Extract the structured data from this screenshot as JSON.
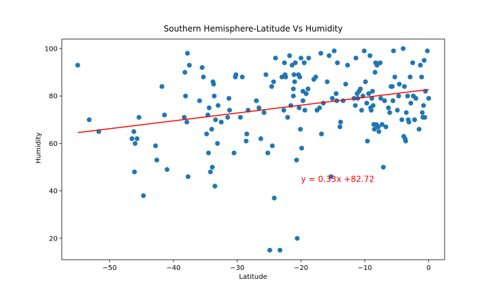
{
  "chart_data": {
    "type": "scatter",
    "title": "Southern Hemisphere-Latitude Vs Humidity",
    "xlabel": "Latitude",
    "ylabel": "Humidity",
    "xlim": [
      -57.5,
      2.5
    ],
    "ylim": [
      11,
      104
    ],
    "xticks": [
      -50,
      -40,
      -30,
      -20,
      -10,
      0
    ],
    "yticks": [
      20,
      40,
      60,
      80,
      100
    ],
    "grid": false,
    "point_color": "#1f77b4",
    "line_color": "#ff0000",
    "regression": {
      "slope": 0.33,
      "intercept": 82.72,
      "x_range": [
        -55,
        0
      ]
    },
    "annotation": {
      "text": "y = 0.33x +82.72",
      "x": -20,
      "y": 45,
      "color": "#ff0000"
    },
    "points": [
      [
        -55,
        93
      ],
      [
        -53.2,
        70
      ],
      [
        -51.7,
        65
      ],
      [
        -46.5,
        62
      ],
      [
        -46.2,
        65
      ],
      [
        -46.1,
        48
      ],
      [
        -46,
        60
      ],
      [
        -45.7,
        62
      ],
      [
        -45.4,
        71
      ],
      [
        -44.7,
        38
      ],
      [
        -42.8,
        59
      ],
      [
        -42.6,
        53
      ],
      [
        -41.8,
        84
      ],
      [
        -41.4,
        72
      ],
      [
        -41,
        49
      ],
      [
        -38.3,
        71
      ],
      [
        -38.2,
        90
      ],
      [
        -38.1,
        80
      ],
      [
        -37.9,
        69
      ],
      [
        -37.8,
        98
      ],
      [
        -37.7,
        46
      ],
      [
        -37.5,
        93
      ],
      [
        -35.9,
        78
      ],
      [
        -35.5,
        92
      ],
      [
        -35.3,
        88
      ],
      [
        -34.8,
        64
      ],
      [
        -34.6,
        72
      ],
      [
        -34.5,
        56
      ],
      [
        -34.4,
        75
      ],
      [
        -34.2,
        48
      ],
      [
        -34,
        66
      ],
      [
        -33.9,
        50
      ],
      [
        -33.8,
        86
      ],
      [
        -33.7,
        85
      ],
      [
        -33.6,
        80
      ],
      [
        -33.5,
        42
      ],
      [
        -33.4,
        70
      ],
      [
        -33.1,
        60
      ],
      [
        -33,
        76
      ],
      [
        -32.5,
        69
      ],
      [
        -31.5,
        71
      ],
      [
        -31.3,
        79
      ],
      [
        -31.2,
        74
      ],
      [
        -30.5,
        56
      ],
      [
        -30.3,
        88
      ],
      [
        -30.2,
        89
      ],
      [
        -29.5,
        71
      ],
      [
        -29.2,
        88
      ],
      [
        -28.6,
        61
      ],
      [
        -28.5,
        64
      ],
      [
        -28.3,
        74
      ],
      [
        -27,
        78
      ],
      [
        -26.6,
        75
      ],
      [
        -26.3,
        62
      ],
      [
        -25.8,
        73
      ],
      [
        -25.5,
        89
      ],
      [
        -25.2,
        56
      ],
      [
        -24.9,
        15
      ],
      [
        -24.6,
        84
      ],
      [
        -24.5,
        59
      ],
      [
        -24.3,
        86
      ],
      [
        -24.2,
        37
      ],
      [
        -24,
        96
      ],
      [
        -23.3,
        15
      ],
      [
        -23,
        88
      ],
      [
        -22.7,
        74
      ],
      [
        -22.6,
        94
      ],
      [
        -22.5,
        89
      ],
      [
        -22.4,
        88
      ],
      [
        -22.1,
        71
      ],
      [
        -21.8,
        97
      ],
      [
        -21.6,
        76
      ],
      [
        -21.4,
        93
      ],
      [
        -21.2,
        83
      ],
      [
        -21.2,
        80
      ],
      [
        -21,
        86
      ],
      [
        -21.1,
        89
      ],
      [
        -20.9,
        94
      ],
      [
        -20.7,
        53
      ],
      [
        -20.6,
        20
      ],
      [
        -20.4,
        89
      ],
      [
        -20.3,
        75
      ],
      [
        -20.2,
        88
      ],
      [
        -20.1,
        66
      ],
      [
        -20,
        96
      ],
      [
        -19.9,
        58
      ],
      [
        -19.7,
        82
      ],
      [
        -19.7,
        78
      ],
      [
        -19.5,
        94
      ],
      [
        -19.4,
        74
      ],
      [
        -19.2,
        81
      ],
      [
        -18.9,
        83
      ],
      [
        -18.8,
        96
      ],
      [
        -18,
        87
      ],
      [
        -17.7,
        88
      ],
      [
        -17.5,
        74
      ],
      [
        -17.1,
        75
      ],
      [
        -16.9,
        98
      ],
      [
        -16.8,
        64
      ],
      [
        -16.5,
        77
      ],
      [
        -15.9,
        86
      ],
      [
        -15.6,
        97
      ],
      [
        -15.3,
        46
      ],
      [
        -15.1,
        79
      ],
      [
        -14.8,
        99
      ],
      [
        -14.5,
        81
      ],
      [
        -14.4,
        78
      ],
      [
        -14.3,
        94
      ],
      [
        -13.9,
        67
      ],
      [
        -13.8,
        69
      ],
      [
        -13.4,
        78
      ],
      [
        -13,
        85
      ],
      [
        -12.7,
        93
      ],
      [
        -11.7,
        79
      ],
      [
        -11.5,
        76
      ],
      [
        -11.4,
        96
      ],
      [
        -11.2,
        81
      ],
      [
        -11.1,
        79
      ],
      [
        -10.9,
        82
      ],
      [
        -10.7,
        83
      ],
      [
        -10.5,
        74
      ],
      [
        -10.3,
        80
      ],
      [
        -10.1,
        99
      ],
      [
        -9.9,
        86
      ],
      [
        -9.7,
        77
      ],
      [
        -9.6,
        61
      ],
      [
        -9.4,
        81
      ],
      [
        -9.2,
        97
      ],
      [
        -9.1,
        75
      ],
      [
        -9,
        74
      ],
      [
        -8.9,
        79
      ],
      [
        -8.8,
        82
      ],
      [
        -8.7,
        76
      ],
      [
        -8.6,
        68
      ],
      [
        -8.5,
        66
      ],
      [
        -8.4,
        90
      ],
      [
        -8.3,
        94
      ],
      [
        -8.2,
        68
      ],
      [
        -8.1,
        93
      ],
      [
        -8,
        67
      ],
      [
        -7.9,
        67
      ],
      [
        -7.8,
        65
      ],
      [
        -7.6,
        94
      ],
      [
        -7.5,
        79
      ],
      [
        -7.3,
        68
      ],
      [
        -7.1,
        50
      ],
      [
        -6.9,
        78
      ],
      [
        -6.7,
        67
      ],
      [
        -6.3,
        75
      ],
      [
        -6.1,
        73
      ],
      [
        -5.9,
        84
      ],
      [
        -5.7,
        84
      ],
      [
        -5.6,
        78
      ],
      [
        -5.5,
        99
      ],
      [
        -5.3,
        88
      ],
      [
        -4.9,
        74
      ],
      [
        -4.7,
        80
      ],
      [
        -4.6,
        85
      ],
      [
        -4.2,
        70
      ],
      [
        -4,
        100
      ],
      [
        -3.9,
        63
      ],
      [
        -3.8,
        84
      ],
      [
        -3.7,
        62
      ],
      [
        -3.6,
        61
      ],
      [
        -3.5,
        73
      ],
      [
        -3.3,
        80
      ],
      [
        -3.2,
        70
      ],
      [
        -3.1,
        69
      ],
      [
        -2.9,
        88
      ],
      [
        -2.8,
        77
      ],
      [
        -2.5,
        94
      ],
      [
        -2.4,
        80
      ],
      [
        -2.2,
        70
      ],
      [
        -2,
        79
      ],
      [
        -1.5,
        66
      ],
      [
        -1.3,
        93
      ],
      [
        -1.1,
        88
      ],
      [
        -1,
        73
      ],
      [
        -0.9,
        71
      ],
      [
        -0.8,
        76
      ],
      [
        -0.7,
        95
      ],
      [
        -0.6,
        71
      ],
      [
        -0.5,
        82
      ],
      [
        -0.2,
        99
      ],
      [
        0,
        79
      ]
    ]
  }
}
